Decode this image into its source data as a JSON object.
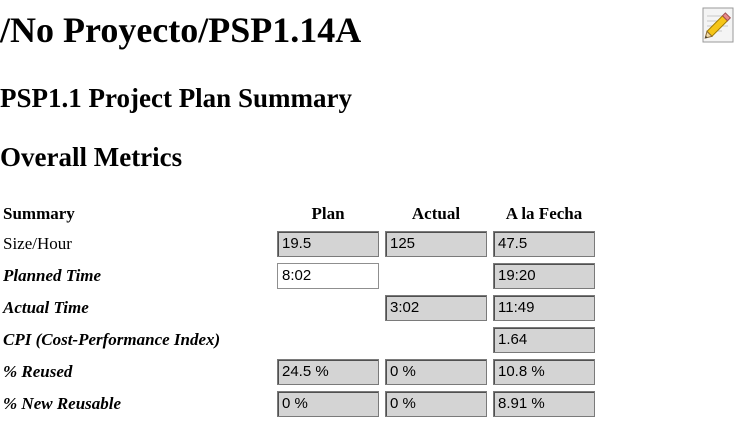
{
  "page": {
    "title": "/No Proyecto/PSP1.14A",
    "edit_icon": "pencil-icon",
    "plan_summary_heading": "PSP1.1 Project Plan Summary",
    "overall_heading": "Overall Metrics"
  },
  "table": {
    "headers": {
      "summary": "Summary",
      "plan": "Plan",
      "actual": "Actual",
      "to_date": "A la Fecha"
    },
    "rows": [
      {
        "label": "Size/Hour",
        "plan": "19.5",
        "actual": "125",
        "to_date": "47.5"
      },
      {
        "label": "Planned Time",
        "plan": "8:02",
        "actual": "",
        "to_date": "19:20"
      },
      {
        "label": "Actual Time",
        "plan": "",
        "actual": "3:02",
        "to_date": "11:49"
      },
      {
        "label": "CPI (Cost-Performance Index)",
        "plan": "",
        "actual": "",
        "to_date": "1.64"
      },
      {
        "label": "% Reused",
        "plan": "24.5 %",
        "actual": "0 %",
        "to_date": "10.8 %"
      },
      {
        "label": "% New Reusable",
        "plan": "0 %",
        "actual": "0 %",
        "to_date": "8.91 %"
      }
    ]
  },
  "colors": {
    "readonly_field": "#d4d4d4",
    "editable_field": "#ffffff"
  }
}
